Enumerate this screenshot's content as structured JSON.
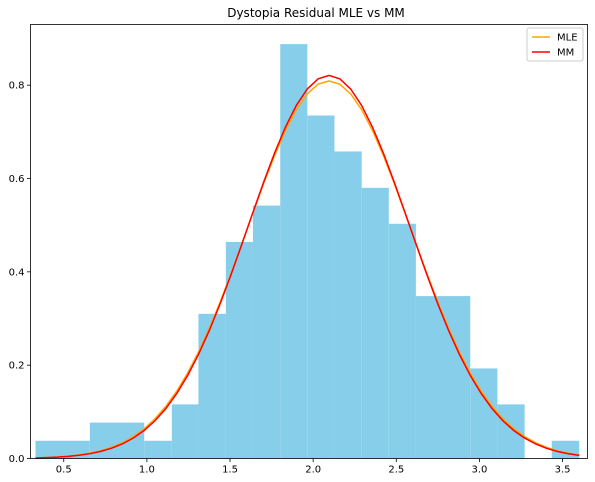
{
  "chart_data": {
    "type": "bar",
    "title": "Dystopia Residual MLE vs MM",
    "xlabel": "",
    "ylabel": "",
    "xlim": [
      0.3,
      3.65
    ],
    "ylim": [
      0,
      0.93
    ],
    "xticks": [
      0.5,
      1.0,
      1.5,
      2.0,
      2.5,
      3.0,
      3.5
    ],
    "xtick_labels": [
      "0.5",
      "1.0",
      "1.5",
      "2.0",
      "2.5",
      "3.0",
      "3.5"
    ],
    "yticks": [
      0.0,
      0.2,
      0.4,
      0.6,
      0.8
    ],
    "ytick_labels": [
      "0.0",
      "0.2",
      "0.4",
      "0.6",
      "0.8"
    ],
    "grid": false,
    "legend_position": "top-right",
    "histogram": {
      "color": "#87ceeb",
      "bins": [
        {
          "x0": 0.33,
          "x1": 0.657,
          "height": 0.038
        },
        {
          "x0": 0.657,
          "x1": 0.984,
          "height": 0.077
        },
        {
          "x0": 0.984,
          "x1": 1.15,
          "height": 0.038
        },
        {
          "x0": 1.15,
          "x1": 1.31,
          "height": 0.116
        },
        {
          "x0": 1.31,
          "x1": 1.475,
          "height": 0.31
        },
        {
          "x0": 1.475,
          "x1": 1.638,
          "height": 0.464
        },
        {
          "x0": 1.638,
          "x1": 1.802,
          "height": 0.542
        },
        {
          "x0": 1.802,
          "x1": 1.965,
          "height": 0.888
        },
        {
          "x0": 1.965,
          "x1": 2.128,
          "height": 0.735
        },
        {
          "x0": 2.128,
          "x1": 2.292,
          "height": 0.658
        },
        {
          "x0": 2.292,
          "x1": 2.455,
          "height": 0.58
        },
        {
          "x0": 2.455,
          "x1": 2.618,
          "height": 0.503
        },
        {
          "x0": 2.618,
          "x1": 2.945,
          "height": 0.348
        },
        {
          "x0": 2.945,
          "x1": 3.108,
          "height": 0.193
        },
        {
          "x0": 3.108,
          "x1": 3.272,
          "height": 0.116
        },
        {
          "x0": 3.272,
          "x1": 3.435,
          "height": 0.0
        },
        {
          "x0": 3.435,
          "x1": 3.6,
          "height": 0.038
        }
      ]
    },
    "series": [
      {
        "name": "MLE",
        "color": "#ffa500",
        "curve": "normal",
        "mean": 2.095,
        "sd": 0.493,
        "x_range": [
          0.33,
          3.6
        ]
      },
      {
        "name": "MM",
        "color": "#ff0000",
        "curve": "normal",
        "mean": 2.095,
        "sd": 0.486,
        "x_range": [
          0.33,
          3.6
        ]
      }
    ]
  }
}
